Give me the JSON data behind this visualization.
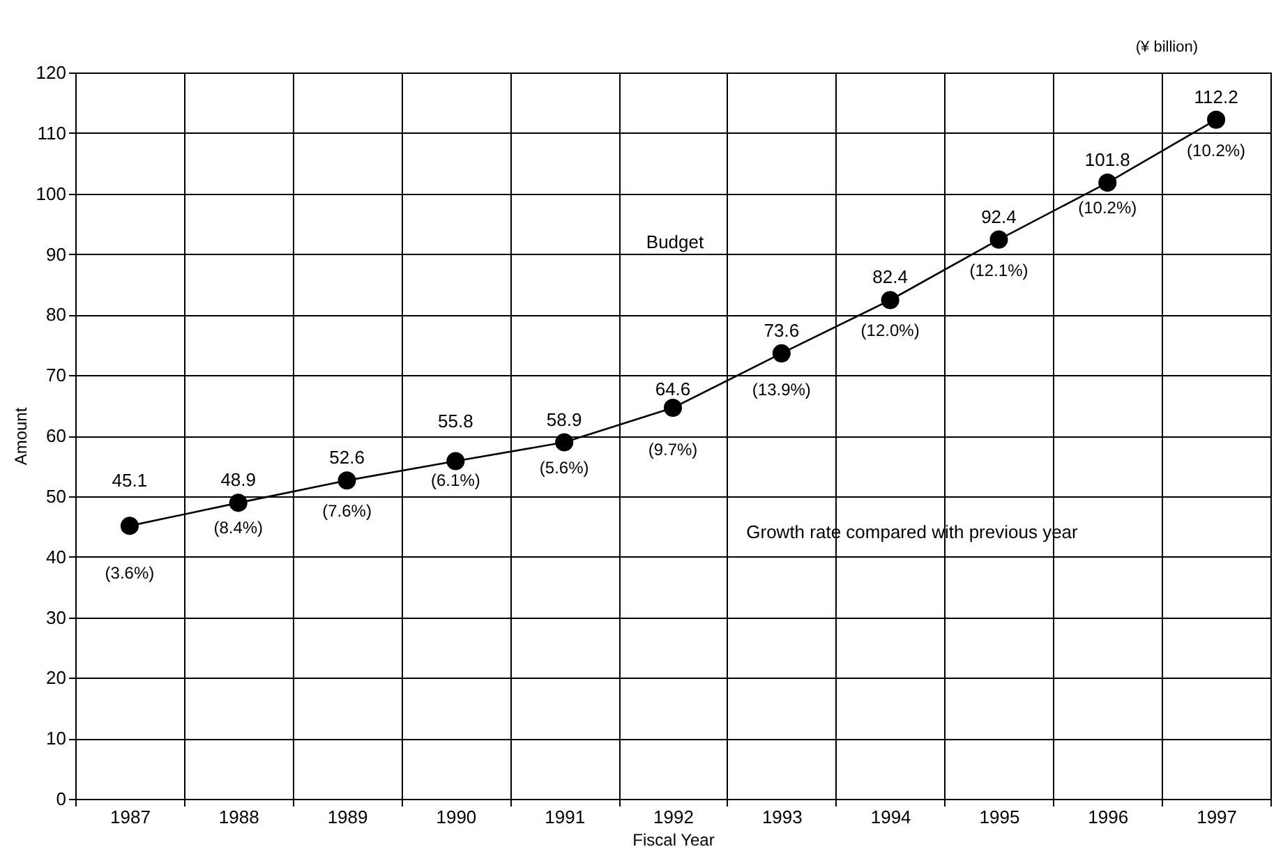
{
  "chart_data": {
    "type": "line",
    "xlabel": "Fiscal Year",
    "ylabel": "Amount",
    "categories": [
      "1987",
      "1988",
      "1989",
      "1990",
      "1991",
      "1992",
      "1993",
      "1994",
      "1995",
      "1996",
      "1997"
    ],
    "values": [
      45.1,
      48.9,
      52.6,
      55.8,
      58.9,
      64.6,
      73.6,
      82.4,
      92.4,
      101.8,
      112.2
    ],
    "color": "#000000",
    "marker": "circle",
    "line_style": "solid",
    "data_labels": true,
    "ylim": [
      0,
      120
    ],
    "yticks": [
      0,
      10,
      20,
      30,
      40,
      50,
      60,
      70,
      80,
      90,
      100,
      110,
      120
    ],
    "grid": true,
    "annotations": [
      {
        "text": "(3.6%)",
        "x": "1987",
        "y": 45.1
      },
      {
        "text": "(8.4%)",
        "x": "1988",
        "y": 48.9
      },
      {
        "text": "(7.6%)",
        "x": "1989",
        "y": 52.6
      },
      {
        "text": "(6.1%)",
        "x": "1990",
        "y": 55.8
      },
      {
        "text": "(5.6%)",
        "x": "1991",
        "y": 58.9
      },
      {
        "text": "(9.7%)",
        "x": "1992",
        "y": 64.6
      },
      {
        "text": "(13.9%)",
        "x": "1993",
        "y": 73.6
      },
      {
        "text": "(12.0%)",
        "x": "1994",
        "y": 82.4
      },
      {
        "text": "(12.1%)",
        "x": "1995",
        "y": 92.4
      },
      {
        "text": "(10.2%)",
        "x": "1996",
        "y": 101.8
      },
      {
        "text": "(10.2%)",
        "x": "1997",
        "y": 112.2
      },
      "(¥ billion)",
      "Budget",
      "Growth rate compared with previous year"
    ]
  }
}
